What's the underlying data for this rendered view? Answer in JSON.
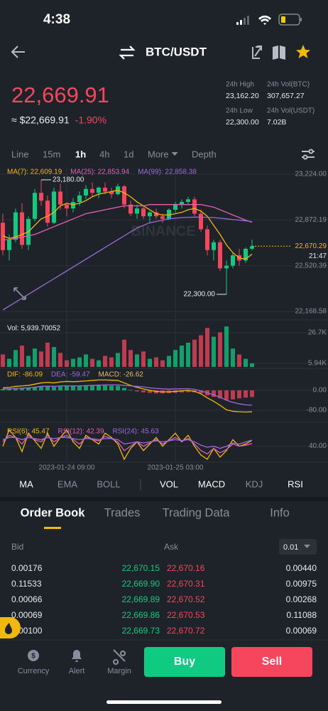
{
  "status_bar": {
    "time": "4:38"
  },
  "header": {
    "pair": "BTC/USDT"
  },
  "ticker": {
    "price": "22,669.91",
    "fiat": "≈ $22,669.91",
    "change": "-1.90%",
    "stats": [
      {
        "label": "24h High",
        "value": "23,162.20"
      },
      {
        "label": "24h Vol(BTC)",
        "value": "307,657.27"
      },
      {
        "label": "24h Low",
        "value": "22,300.00"
      },
      {
        "label": "24h Vol(USDT)",
        "value": "7.02B"
      }
    ]
  },
  "intervals": [
    "Line",
    "15m",
    "1h",
    "4h",
    "1d",
    "More",
    "Depth"
  ],
  "chart_data": [
    {
      "type": "candlestick",
      "watermark": "BINANCE",
      "categories": [
        null,
        null,
        null,
        null,
        null,
        null,
        null,
        null,
        null,
        null,
        "2023-01-24 09:00",
        null,
        null,
        null,
        null,
        null,
        null,
        null,
        null,
        null,
        null,
        null,
        null,
        null,
        null,
        null,
        null,
        "2023-01-25 03:00",
        null,
        null,
        null,
        null,
        null,
        null,
        null,
        null,
        null,
        null,
        null,
        null
      ],
      "open": [
        22850,
        22640,
        22720,
        22930,
        22680,
        22880,
        23080,
        23020,
        22850,
        23090,
        22990,
        22960,
        23010,
        23060,
        23110,
        23080,
        23120,
        23090,
        23070,
        23130,
        22990,
        22920,
        22960,
        22900,
        22930,
        22900,
        22880,
        22950,
        22990,
        23010,
        23030,
        22920,
        22800,
        22640,
        22700,
        22500,
        22520,
        22600,
        22560,
        22650
      ],
      "high": [
        22920,
        22760,
        22960,
        23000,
        22900,
        23110,
        23180,
        23060,
        23120,
        23150,
        23000,
        23040,
        23090,
        23140,
        23160,
        23130,
        23160,
        23120,
        23150,
        23140,
        23020,
        22990,
        22980,
        22940,
        22960,
        22920,
        22960,
        23010,
        23030,
        23050,
        23050,
        22950,
        22830,
        22720,
        22720,
        22560,
        22620,
        22650,
        22660,
        22720
      ],
      "low": [
        22600,
        22560,
        22700,
        22650,
        22640,
        22860,
        22980,
        22820,
        22840,
        22950,
        22900,
        22930,
        22980,
        23030,
        23050,
        23040,
        23070,
        23040,
        23060,
        22960,
        22900,
        22880,
        22880,
        22850,
        22880,
        22850,
        22870,
        22930,
        22960,
        22990,
        22900,
        22780,
        22600,
        22560,
        22480,
        22300,
        22500,
        22520,
        22540,
        22640
      ],
      "close": [
        22640,
        22720,
        22930,
        22680,
        22880,
        23080,
        23020,
        22850,
        23090,
        22990,
        22960,
        23010,
        23060,
        23110,
        23080,
        23120,
        23090,
        23070,
        23130,
        22990,
        22920,
        22960,
        22900,
        22930,
        22900,
        22880,
        22950,
        22990,
        23010,
        23030,
        22920,
        22800,
        22640,
        22700,
        22500,
        22520,
        22600,
        22560,
        22650,
        22670.29
      ],
      "up_color": "#0ecb81",
      "down_color": "#f6465d",
      "series": [
        {
          "name": "MA(7): 22,609.19",
          "color": "#f0b90b",
          "values": [
            22750,
            22730,
            22740,
            22760,
            22780,
            22830,
            22880,
            22900,
            22930,
            22980,
            23000,
            22990,
            23000,
            23020,
            23050,
            23070,
            23080,
            23090,
            23100,
            23080,
            23050,
            23010,
            22980,
            22950,
            22920,
            22910,
            22910,
            22920,
            22930,
            22950,
            22960,
            22940,
            22900,
            22830,
            22760,
            22680,
            22620,
            22580,
            22570,
            22609.19
          ]
        },
        {
          "name": "MA(25): 22,853.94",
          "color": "#e25fb7",
          "values": [
            22720,
            22720,
            22730,
            22740,
            22750,
            22760,
            22780,
            22800,
            22820,
            22840,
            22860,
            22880,
            22900,
            22920,
            22930,
            22940,
            22950,
            22960,
            22970,
            22980,
            22980,
            22980,
            22980,
            22990,
            22990,
            22990,
            22990,
            22990,
            22990,
            22990,
            22990,
            22990,
            22980,
            22970,
            22950,
            22930,
            22910,
            22890,
            22870,
            22853.94
          ]
        },
        {
          "name": "MA(99): 22,858.38",
          "color": "#9b6bdb",
          "values": [
            22180,
            22210,
            22240,
            22270,
            22300,
            22330,
            22360,
            22390,
            22420,
            22450,
            22480,
            22510,
            22540,
            22570,
            22600,
            22630,
            22660,
            22690,
            22720,
            22750,
            22780,
            22810,
            22830,
            22850,
            22860,
            22870,
            22880,
            22885,
            22890,
            22892,
            22893,
            22893,
            22892,
            22890,
            22885,
            22880,
            22875,
            22870,
            22865,
            22858.38
          ]
        }
      ],
      "ylim": [
        22114,
        23278
      ],
      "yticks": [
        {
          "value": 23224,
          "label": "23,224.00"
        },
        {
          "value": 22872.19,
          "label": "22,872.19"
        },
        {
          "value": 22520.39,
          "label": "22,520.39"
        },
        {
          "value": 22168.58,
          "label": "22,168.58"
        }
      ],
      "annotations": [
        {
          "value": 23180,
          "label": "23,180.00"
        },
        {
          "value": 22300,
          "label": "22,300.00"
        }
      ],
      "current": {
        "value": 22670.29,
        "label": "22,670.29",
        "time": "21:47"
      },
      "grid": true
    },
    {
      "type": "bar",
      "title": "Vol: 5,939.70052",
      "values": [
        12000,
        9000,
        15000,
        18000,
        11000,
        16000,
        14000,
        20000,
        17000,
        13000,
        8000,
        9000,
        10000,
        12000,
        9000,
        8000,
        11000,
        10000,
        13000,
        22000,
        15000,
        12000,
        14000,
        9000,
        10000,
        8000,
        11000,
        15000,
        18000,
        20000,
        22000,
        25000,
        30000,
        24000,
        27000,
        31000,
        16000,
        12000,
        9000,
        5939.70052
      ],
      "ylim": [
        3530,
        33000
      ],
      "yticks": [
        {
          "value": 26700,
          "label": "26.7K"
        },
        {
          "value": 5940,
          "label": "5.94K"
        }
      ],
      "grid": true
    },
    {
      "type": "macd",
      "series": [
        {
          "name": "DIF: -86.09",
          "color": "#f0b90b",
          "type": "line",
          "values": [
            10,
            12,
            16,
            18,
            20,
            25,
            30,
            32,
            30,
            34,
            36,
            35,
            36,
            38,
            40,
            42,
            42,
            41,
            40,
            30,
            20,
            12,
            6,
            0,
            -4,
            -6,
            -6,
            -4,
            -2,
            0,
            -4,
            -14,
            -30,
            -44,
            -60,
            -78,
            -84,
            -86,
            -87,
            -86.09
          ]
        },
        {
          "name": "DEA: -59.47",
          "color": "#9b6bdb",
          "type": "line",
          "values": [
            5,
            6,
            8,
            9,
            10,
            13,
            16,
            17,
            16,
            18,
            18,
            18,
            18,
            19,
            20,
            21,
            22,
            22,
            22,
            20,
            18,
            16,
            14,
            10,
            8,
            6,
            5,
            6,
            6,
            7,
            4,
            -2,
            -10,
            -18,
            -28,
            -40,
            -48,
            -54,
            -58,
            -59.47
          ]
        },
        {
          "name": "MACD: -26.62",
          "color": "#e0c060",
          "type": "bar",
          "up_color": "#0ecb81",
          "down_color": "#f6465d",
          "values": [
            5,
            6,
            8,
            9,
            10,
            12,
            14,
            15,
            14,
            16,
            18,
            17,
            18,
            19,
            20,
            21,
            20,
            19,
            18,
            10,
            2,
            -4,
            -8,
            -10,
            -12,
            -12,
            -11,
            -10,
            -8,
            -7,
            -8,
            -12,
            -20,
            -26,
            -32,
            -38,
            -36,
            -32,
            -29,
            -26.62
          ]
        }
      ],
      "ylim": [
        -117,
        83
      ],
      "yticks": [
        {
          "value": 0,
          "label": "0.00"
        },
        {
          "value": -80,
          "label": "-80.00"
        }
      ],
      "grid": true
    },
    {
      "type": "line",
      "series": [
        {
          "name": "RSI(6): 45.47",
          "color": "#f0b90b",
          "values": [
            40,
            55,
            48,
            35,
            52,
            45,
            38,
            52,
            40,
            48,
            55,
            44,
            38,
            50,
            46,
            42,
            52,
            48,
            42,
            28,
            38,
            44,
            36,
            42,
            48,
            40,
            46,
            52,
            44,
            50,
            40,
            32,
            28,
            38,
            30,
            36,
            46,
            40,
            42,
            45.47
          ]
        },
        {
          "name": "RSI(12): 42.39",
          "color": "#e25fb7",
          "values": [
            44,
            50,
            48,
            42,
            50,
            46,
            44,
            50,
            44,
            48,
            50,
            46,
            42,
            48,
            46,
            45,
            49,
            47,
            44,
            36,
            40,
            44,
            40,
            43,
            46,
            42,
            45,
            48,
            45,
            47,
            42,
            36,
            33,
            38,
            34,
            37,
            42,
            40,
            41,
            42.39
          ]
        },
        {
          "name": "RSI(24): 45.63",
          "color": "#9b6bdb",
          "values": [
            46,
            48,
            48,
            46,
            48,
            47,
            46,
            48,
            47,
            48,
            48,
            47,
            46,
            47,
            47,
            46,
            47,
            47,
            46,
            42,
            43,
            44,
            43,
            44,
            45,
            44,
            45,
            46,
            45,
            46,
            44,
            41,
            39,
            40,
            38,
            40,
            43,
            42,
            44,
            45.63
          ]
        }
      ],
      "ylim": [
        28,
        58
      ],
      "yticks": [
        {
          "value": 40,
          "label": "40.00"
        }
      ],
      "grid": true
    }
  ],
  "indicator_tabs": {
    "main": [
      "MA",
      "EMA",
      "BOLL"
    ],
    "sub": [
      "VOL",
      "MACD",
      "KDJ",
      "RSI"
    ]
  },
  "order_book": {
    "tabs": [
      "Order Book",
      "Trades",
      "Trading Data",
      "Info"
    ],
    "bid": "Bid",
    "ask": "Ask",
    "precision": "0.01",
    "rows": [
      {
        "bid_qty": "0.00176",
        "bid_price": "22,670.15",
        "ask_price": "22,670.16",
        "ask_qty": "0.00440"
      },
      {
        "bid_qty": "0.11533",
        "bid_price": "22,669.90",
        "ask_price": "22,670.31",
        "ask_qty": "0.00975"
      },
      {
        "bid_qty": "0.00066",
        "bid_price": "22,669.89",
        "ask_price": "22,670.52",
        "ask_qty": "0.00268"
      },
      {
        "bid_qty": "0.00069",
        "bid_price": "22,669.86",
        "ask_price": "22,670.53",
        "ask_qty": "0.11088"
      },
      {
        "bid_qty": "0.00100",
        "bid_price": "22,669.73",
        "ask_price": "22,670.72",
        "ask_qty": "0.00069"
      }
    ]
  },
  "nav": [
    "Currency",
    "Alert",
    "Margin"
  ],
  "actions": {
    "buy": "Buy",
    "sell": "Sell"
  }
}
